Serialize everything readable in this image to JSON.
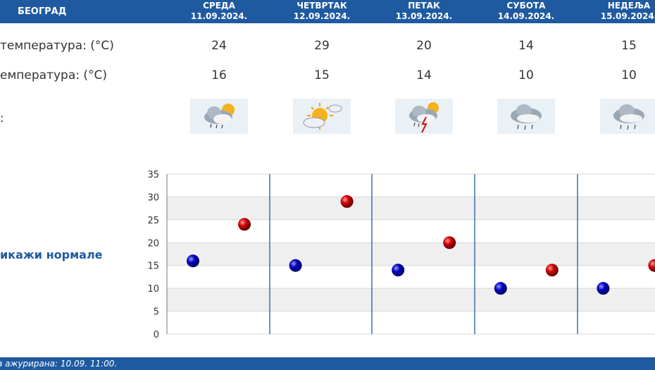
{
  "header": {
    "city": "БЕОГРАД",
    "days": [
      {
        "name": "СРЕДА",
        "date": "11.09.2024."
      },
      {
        "name": "ЧЕТВРТАК",
        "date": "12.09.2024."
      },
      {
        "name": "ПЕТАК",
        "date": "13.09.2024."
      },
      {
        "name": "СУБОТА",
        "date": "14.09.2024."
      },
      {
        "name": "НЕДЕЉА",
        "date": "15.09.2024."
      }
    ]
  },
  "rows": {
    "max_label": "температура: (°C)",
    "min_label": "емпература: (°C)",
    "icon_label": ":",
    "max_temps": [
      "24",
      "29",
      "20",
      "14",
      "15"
    ],
    "min_temps": [
      "16",
      "15",
      "14",
      "10",
      "10"
    ]
  },
  "icons": [
    "partly-sunny-rain-icon",
    "sun-cloud-icon",
    "thunderstorm-icon",
    "rain-cloud-icon",
    "rain-cloud-icon"
  ],
  "normals_link": "икажи нормале",
  "footer": {
    "text": "а ажурирана:  10.09.  11:00."
  },
  "colors": {
    "header": "#1f5aa0",
    "max_marker": "#d00000",
    "min_marker": "#0000c0"
  },
  "chart_data": {
    "type": "scatter",
    "yticks": [
      "0",
      "5",
      "10",
      "15",
      "20",
      "25",
      "30",
      "35"
    ],
    "ylim": [
      0,
      35
    ],
    "grid": true,
    "series": [
      {
        "role": "min",
        "values": [
          16,
          15,
          14,
          10,
          10
        ]
      },
      {
        "role": "max",
        "values": [
          24,
          29,
          20,
          14,
          15
        ]
      }
    ]
  }
}
